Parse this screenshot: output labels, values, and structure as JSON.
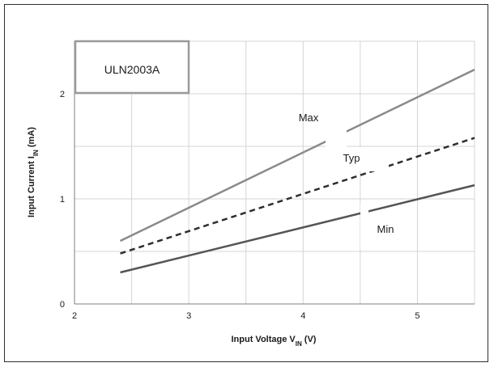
{
  "chart_data": {
    "type": "line",
    "title": "ULN2003A",
    "xlabel": {
      "main": "Input Voltage V",
      "sub": "IN",
      "unit": " (V)"
    },
    "ylabel": {
      "main": "Input Current I",
      "sub": "IN",
      "unit": " (mA)"
    },
    "xlim": [
      2,
      5.5
    ],
    "ylim": [
      0,
      2.5
    ],
    "x_ticks": [
      2,
      3,
      4,
      5
    ],
    "y_ticks": [
      0,
      1,
      2
    ],
    "grid": true,
    "series": [
      {
        "name": "Max",
        "style": "solid",
        "color": "#8a8a8a",
        "x": [
          2.4,
          5.5
        ],
        "y": [
          0.6,
          2.23
        ]
      },
      {
        "name": "Typ",
        "style": "dashed",
        "color": "#2e2e2e",
        "x": [
          2.4,
          5.5
        ],
        "y": [
          0.48,
          1.58
        ]
      },
      {
        "name": "Min",
        "style": "solid",
        "color": "#555555",
        "x": [
          2.4,
          5.5
        ],
        "y": [
          0.3,
          1.13
        ]
      }
    ]
  }
}
